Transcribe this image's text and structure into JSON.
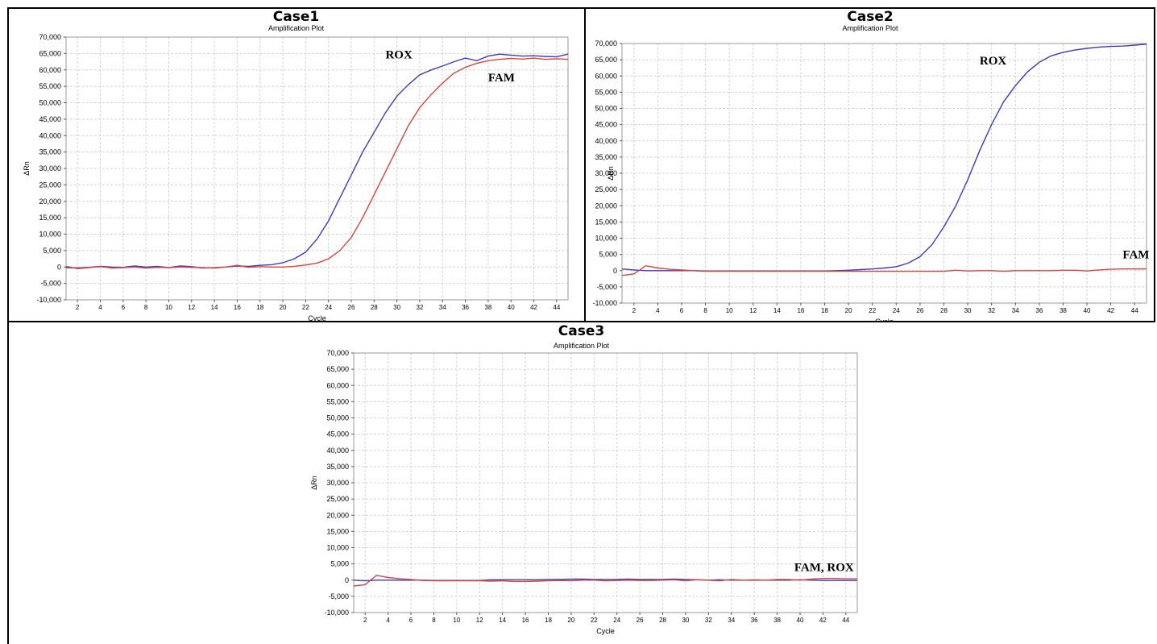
{
  "colors": {
    "rox": "#3b3bc2",
    "fam": "#d9443c",
    "grid": "#d4d4d4",
    "frame": "#000000",
    "plot_border": "#9a9a9a"
  },
  "panels": [
    {
      "title": "Case1",
      "subtitle": "Amplification Plot"
    },
    {
      "title": "Case2",
      "subtitle": "Amplification Plot"
    },
    {
      "title": "Case3",
      "subtitle": "Amplification Plot"
    }
  ],
  "chart_data": [
    {
      "type": "line",
      "title": "Case1",
      "subtitle": "Amplification Plot",
      "xlabel": "Cycle",
      "ylabel": "ΔRn",
      "xlim": [
        1,
        45
      ],
      "ylim": [
        -10000,
        70000
      ],
      "x_ticks": [
        2,
        4,
        6,
        8,
        10,
        12,
        14,
        16,
        18,
        20,
        22,
        24,
        26,
        28,
        30,
        32,
        34,
        36,
        38,
        40,
        42,
        44
      ],
      "y_ticks": [
        -10000,
        -5000,
        0,
        5000,
        10000,
        15000,
        20000,
        25000,
        30000,
        35000,
        40000,
        45000,
        50000,
        55000,
        60000,
        65000,
        70000
      ],
      "y_tick_labels": [
        "-10,000",
        "-5,000",
        "0",
        "5,000",
        "10,000",
        "15,000",
        "20,000",
        "25,000",
        "30,000",
        "35,000",
        "40,000",
        "45,000",
        "50,000",
        "55,000",
        "60,000",
        "65,000",
        "70,000"
      ],
      "grid": true,
      "x": [
        1,
        2,
        3,
        4,
        5,
        6,
        7,
        8,
        9,
        10,
        11,
        12,
        13,
        14,
        15,
        16,
        17,
        18,
        19,
        20,
        21,
        22,
        23,
        24,
        25,
        26,
        27,
        28,
        29,
        30,
        31,
        32,
        33,
        34,
        35,
        36,
        37,
        38,
        39,
        40,
        41,
        42,
        43,
        44,
        45
      ],
      "series": [
        {
          "name": "ROX",
          "color": "#3b3bc2",
          "label_at": [
            29,
            63500
          ],
          "values": [
            -200,
            -300,
            -100,
            200,
            0,
            -100,
            300,
            0,
            200,
            -200,
            300,
            100,
            -300,
            -200,
            0,
            300,
            200,
            500,
            700,
            1300,
            2500,
            4500,
            8500,
            14000,
            21000,
            28000,
            35000,
            41000,
            47000,
            52000,
            55500,
            58500,
            60000,
            61200,
            62500,
            63600,
            62800,
            64200,
            64800,
            64500,
            64200,
            64300,
            64100,
            64000,
            64800
          ]
        },
        {
          "name": "FAM",
          "color": "#d9443c",
          "label_at": [
            38,
            56500
          ],
          "values": [
            200,
            -500,
            -200,
            100,
            -300,
            -200,
            0,
            -300,
            -100,
            -200,
            0,
            -100,
            -200,
            -300,
            0,
            500,
            -100,
            100,
            0,
            0,
            200,
            600,
            1200,
            2500,
            5000,
            9000,
            15000,
            22000,
            29000,
            36000,
            43000,
            48500,
            52500,
            56000,
            59000,
            60800,
            62000,
            62800,
            63200,
            63500,
            63300,
            63600,
            63200,
            63400,
            63200
          ]
        }
      ]
    },
    {
      "type": "line",
      "title": "Case2",
      "subtitle": "Amplification Plot",
      "xlabel": "Cycle",
      "ylabel": "ΔRn",
      "xlim": [
        1,
        45
      ],
      "ylim": [
        -10000,
        70000
      ],
      "x_ticks": [
        2,
        4,
        6,
        8,
        10,
        12,
        14,
        16,
        18,
        20,
        22,
        24,
        26,
        28,
        30,
        32,
        34,
        36,
        38,
        40,
        42,
        44
      ],
      "y_ticks": [
        -10000,
        -5000,
        0,
        5000,
        10000,
        15000,
        20000,
        25000,
        30000,
        35000,
        40000,
        45000,
        50000,
        55000,
        60000,
        65000,
        70000
      ],
      "y_tick_labels": [
        "-10,000",
        "-5,000",
        "0",
        "5,000",
        "10,000",
        "15,000",
        "20,000",
        "25,000",
        "30,000",
        "35,000",
        "40,000",
        "45,000",
        "50,000",
        "55,000",
        "60,000",
        "65,000",
        "70,000"
      ],
      "grid": true,
      "x": [
        1,
        2,
        3,
        4,
        5,
        6,
        7,
        8,
        9,
        10,
        11,
        12,
        13,
        14,
        15,
        16,
        17,
        18,
        19,
        20,
        21,
        22,
        23,
        24,
        25,
        26,
        27,
        28,
        29,
        30,
        31,
        32,
        33,
        34,
        35,
        36,
        37,
        38,
        39,
        40,
        41,
        42,
        43,
        44,
        45
      ],
      "series": [
        {
          "name": "ROX",
          "color": "#3b3bc2",
          "label_at": [
            31,
            63500
          ],
          "values": [
            500,
            200,
            0,
            0,
            0,
            0,
            0,
            -100,
            -100,
            -100,
            -100,
            -100,
            -100,
            -100,
            -100,
            -100,
            -100,
            -100,
            0,
            100,
            300,
            500,
            800,
            1200,
            2300,
            4300,
            8000,
            13500,
            20000,
            28000,
            37000,
            45000,
            52000,
            57000,
            61200,
            64200,
            66200,
            67300,
            68000,
            68500,
            68900,
            69100,
            69200,
            69500,
            69800
          ]
        },
        {
          "name": "FAM",
          "color": "#d9443c",
          "label_at": [
            43,
            3800
          ],
          "values": [
            -1500,
            -1000,
            1500,
            800,
            400,
            200,
            0,
            -200,
            -200,
            -200,
            -200,
            -200,
            -200,
            -200,
            -200,
            -200,
            -200,
            -200,
            -200,
            -200,
            -200,
            -200,
            -200,
            -200,
            -200,
            -200,
            -200,
            -200,
            100,
            -100,
            0,
            0,
            -200,
            0,
            0,
            0,
            0,
            100,
            100,
            -100,
            200,
            400,
            500,
            500,
            500
          ]
        }
      ]
    },
    {
      "type": "line",
      "title": "Case3",
      "subtitle": "Amplification Plot",
      "xlabel": "Cycle",
      "ylabel": "ΔRn",
      "xlim": [
        1,
        45
      ],
      "ylim": [
        -10000,
        70000
      ],
      "x_ticks": [
        2,
        4,
        6,
        8,
        10,
        12,
        14,
        16,
        18,
        20,
        22,
        24,
        26,
        28,
        30,
        32,
        34,
        36,
        38,
        40,
        42,
        44
      ],
      "y_ticks": [
        -10000,
        -5000,
        0,
        5000,
        10000,
        15000,
        20000,
        25000,
        30000,
        35000,
        40000,
        45000,
        50000,
        55000,
        60000,
        65000,
        70000
      ],
      "y_tick_labels": [
        "-10,000",
        "-5,000",
        "0",
        "5,000",
        "10,000",
        "15,000",
        "20,000",
        "25,000",
        "30,000",
        "35,000",
        "40,000",
        "45,000",
        "50,000",
        "55,000",
        "60,000",
        "65,000",
        "70,000"
      ],
      "grid": true,
      "x": [
        1,
        2,
        3,
        4,
        5,
        6,
        7,
        8,
        9,
        10,
        11,
        12,
        13,
        14,
        15,
        16,
        17,
        18,
        19,
        20,
        21,
        22,
        23,
        24,
        25,
        26,
        27,
        28,
        29,
        30,
        31,
        32,
        33,
        34,
        35,
        36,
        37,
        38,
        39,
        40,
        41,
        42,
        43,
        44,
        45
      ],
      "annotation": {
        "text": "FAM, ROX",
        "at": [
          39.5,
          2800
        ]
      },
      "series": [
        {
          "color": "#3b3bc2",
          "values": [
            0,
            -200,
            0,
            0,
            0,
            0,
            0,
            -100,
            -100,
            -100,
            -100,
            -100,
            100,
            100,
            100,
            100,
            100,
            200,
            200,
            300,
            300,
            200,
            200,
            200,
            300,
            200,
            200,
            200,
            300,
            200,
            100,
            0,
            100,
            0,
            0,
            0,
            0,
            0,
            0,
            100,
            0,
            -100,
            -100,
            -100,
            -100
          ]
        },
        {
          "color": "#d9443c",
          "values": [
            -1800,
            -1400,
            1500,
            800,
            400,
            200,
            -100,
            -200,
            -200,
            -200,
            -200,
            -200,
            -300,
            -200,
            -400,
            -400,
            -300,
            -200,
            -100,
            -200,
            0,
            0,
            -200,
            -100,
            0,
            -100,
            -100,
            0,
            100,
            -200,
            100,
            0,
            -200,
            200,
            0,
            100,
            0,
            200,
            200,
            0,
            300,
            500,
            500,
            400,
            400
          ]
        }
      ]
    }
  ]
}
